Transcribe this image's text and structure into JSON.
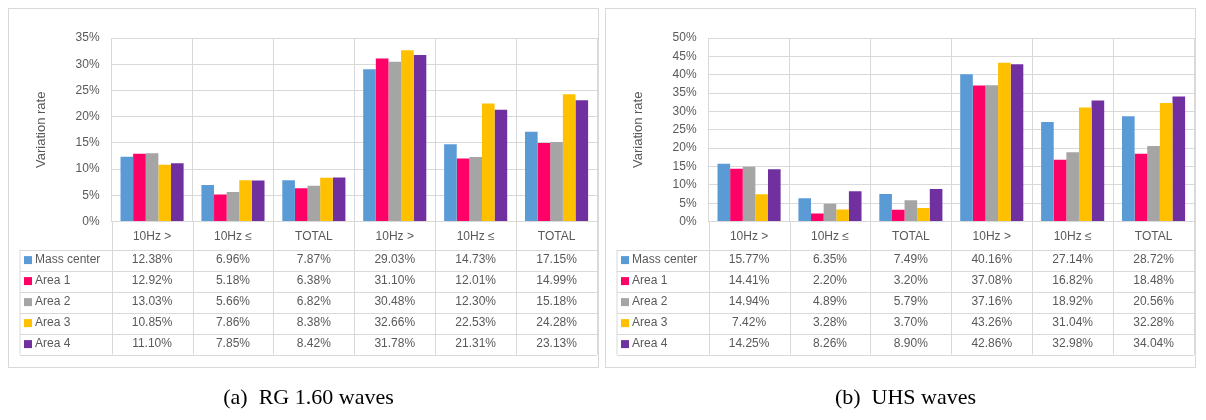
{
  "chart_data": [
    {
      "type": "bar",
      "title": "(a)  RG 1.60 waves",
      "ylabel": "Variation rate",
      "categories": [
        "10Hz >",
        "10Hz ≤",
        "TOTAL",
        "10Hz >",
        "10Hz ≤",
        "TOTAL"
      ],
      "ylim": [
        0,
        35
      ],
      "yticks": [
        {
          "value": 0,
          "label": "0%"
        },
        {
          "value": 5,
          "label": "5%"
        },
        {
          "value": 10,
          "label": "10%"
        },
        {
          "value": 15,
          "label": "15%"
        },
        {
          "value": 20,
          "label": "20%"
        },
        {
          "value": 25,
          "label": "25%"
        },
        {
          "value": 30,
          "label": "30%"
        },
        {
          "value": 35,
          "label": "35%"
        }
      ],
      "grid": true,
      "legend": "bottom",
      "series": [
        {
          "name": "Mass center",
          "color": "#5b9bd5",
          "values": [
            12.38,
            6.96,
            7.87,
            29.03,
            14.73,
            17.15
          ],
          "value_labels": [
            "12.38%",
            "6.96%",
            "7.87%",
            "29.03%",
            "14.73%",
            "17.15%"
          ]
        },
        {
          "name": "Area 1",
          "color": "#ff0066",
          "values": [
            12.92,
            5.18,
            6.38,
            31.1,
            12.01,
            14.99
          ],
          "value_labels": [
            "12.92%",
            "5.18%",
            "6.38%",
            "31.10%",
            "12.01%",
            "14.99%"
          ]
        },
        {
          "name": "Area 2",
          "color": "#a5a5a5",
          "values": [
            13.03,
            5.66,
            6.82,
            30.48,
            12.3,
            15.18
          ],
          "value_labels": [
            "13.03%",
            "5.66%",
            "6.82%",
            "30.48%",
            "12.30%",
            "15.18%"
          ]
        },
        {
          "name": "Area 3",
          "color": "#ffc000",
          "values": [
            10.85,
            7.86,
            8.38,
            32.66,
            22.53,
            24.28
          ],
          "value_labels": [
            "10.85%",
            "7.86%",
            "8.38%",
            "32.66%",
            "22.53%",
            "24.28%"
          ]
        },
        {
          "name": "Area 4",
          "color": "#7030a0",
          "values": [
            11.1,
            7.85,
            8.42,
            31.78,
            21.31,
            23.13
          ],
          "value_labels": [
            "11.10%",
            "7.85%",
            "8.42%",
            "31.78%",
            "21.31%",
            "23.13%"
          ]
        }
      ]
    },
    {
      "type": "bar",
      "title": "(b)  UHS waves",
      "ylabel": "Variation rate",
      "categories": [
        "10Hz >",
        "10Hz ≤",
        "TOTAL",
        "10Hz >",
        "10Hz ≤",
        "TOTAL"
      ],
      "ylim": [
        0,
        50
      ],
      "yticks": [
        {
          "value": 0,
          "label": "0%"
        },
        {
          "value": 5,
          "label": "5%"
        },
        {
          "value": 10,
          "label": "10%"
        },
        {
          "value": 15,
          "label": "15%"
        },
        {
          "value": 20,
          "label": "20%"
        },
        {
          "value": 25,
          "label": "25%"
        },
        {
          "value": 30,
          "label": "30%"
        },
        {
          "value": 35,
          "label": "35%"
        },
        {
          "value": 40,
          "label": "40%"
        },
        {
          "value": 45,
          "label": "45%"
        },
        {
          "value": 50,
          "label": "50%"
        }
      ],
      "grid": true,
      "legend": "bottom",
      "series": [
        {
          "name": "Mass center",
          "color": "#5b9bd5",
          "values": [
            15.77,
            6.35,
            7.49,
            40.16,
            27.14,
            28.72
          ],
          "value_labels": [
            "15.77%",
            "6.35%",
            "7.49%",
            "40.16%",
            "27.14%",
            "28.72%"
          ]
        },
        {
          "name": "Area 1",
          "color": "#ff0066",
          "values": [
            14.41,
            2.2,
            3.2,
            37.08,
            16.82,
            18.48
          ],
          "value_labels": [
            "14.41%",
            "2.20%",
            "3.20%",
            "37.08%",
            "16.82%",
            "18.48%"
          ]
        },
        {
          "name": "Area 2",
          "color": "#a5a5a5",
          "values": [
            14.94,
            4.89,
            5.79,
            37.16,
            18.92,
            20.56
          ],
          "value_labels": [
            "14.94%",
            "4.89%",
            "5.79%",
            "37.16%",
            "18.92%",
            "20.56%"
          ]
        },
        {
          "name": "Area 3",
          "color": "#ffc000",
          "values": [
            7.42,
            3.28,
            3.7,
            43.26,
            31.04,
            32.28
          ],
          "value_labels": [
            "7.42%",
            "3.28%",
            "3.70%",
            "43.26%",
            "31.04%",
            "32.28%"
          ]
        },
        {
          "name": "Area 4",
          "color": "#7030a0",
          "values": [
            14.25,
            8.26,
            8.9,
            42.86,
            32.98,
            34.04
          ],
          "value_labels": [
            "14.25%",
            "8.26%",
            "8.90%",
            "42.86%",
            "32.98%",
            "34.04%"
          ]
        }
      ]
    }
  ]
}
